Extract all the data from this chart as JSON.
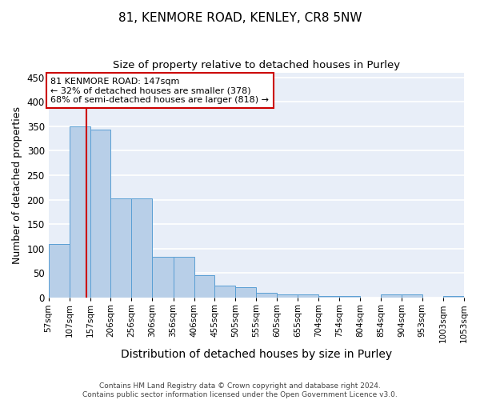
{
  "title_line1": "81, KENMORE ROAD, KENLEY, CR8 5NW",
  "title_line2": "Size of property relative to detached houses in Purley",
  "xlabel": "Distribution of detached houses by size in Purley",
  "ylabel": "Number of detached properties",
  "footer_line1": "Contains HM Land Registry data © Crown copyright and database right 2024.",
  "footer_line2": "Contains public sector information licensed under the Open Government Licence v3.0.",
  "bar_left_edges": [
    57,
    107,
    157,
    206,
    256,
    306,
    356,
    406,
    455,
    505,
    555,
    605,
    655,
    704,
    754,
    804,
    854,
    904,
    953,
    1003
  ],
  "bar_widths": [
    50,
    50,
    49,
    50,
    50,
    50,
    50,
    49,
    50,
    50,
    50,
    50,
    49,
    50,
    50,
    50,
    50,
    49,
    50,
    50
  ],
  "bar_heights": [
    110,
    350,
    344,
    203,
    203,
    84,
    84,
    46,
    24,
    21,
    10,
    7,
    6,
    3,
    3,
    0,
    7,
    7,
    0,
    4
  ],
  "bar_color": "#b8cfe8",
  "bar_edge_color": "#5a9fd4",
  "tick_labels": [
    "57sqm",
    "107sqm",
    "157sqm",
    "206sqm",
    "256sqm",
    "306sqm",
    "356sqm",
    "406sqm",
    "455sqm",
    "505sqm",
    "555sqm",
    "605sqm",
    "655sqm",
    "704sqm",
    "754sqm",
    "804sqm",
    "854sqm",
    "904sqm",
    "953sqm",
    "1003sqm",
    "1053sqm"
  ],
  "property_size": 147,
  "vline_color": "#cc0000",
  "annotation_text": "81 KENMORE ROAD: 147sqm\n← 32% of detached houses are smaller (378)\n68% of semi-detached houses are larger (818) →",
  "ylim": [
    0,
    460
  ],
  "xlim": [
    57,
    1053
  ],
  "background_color": "#e8eef8",
  "grid_color": "#ffffff",
  "title_fontsize": 11,
  "subtitle_fontsize": 9.5,
  "axis_label_fontsize": 9,
  "tick_fontsize": 7.5,
  "annotation_fontsize": 8
}
